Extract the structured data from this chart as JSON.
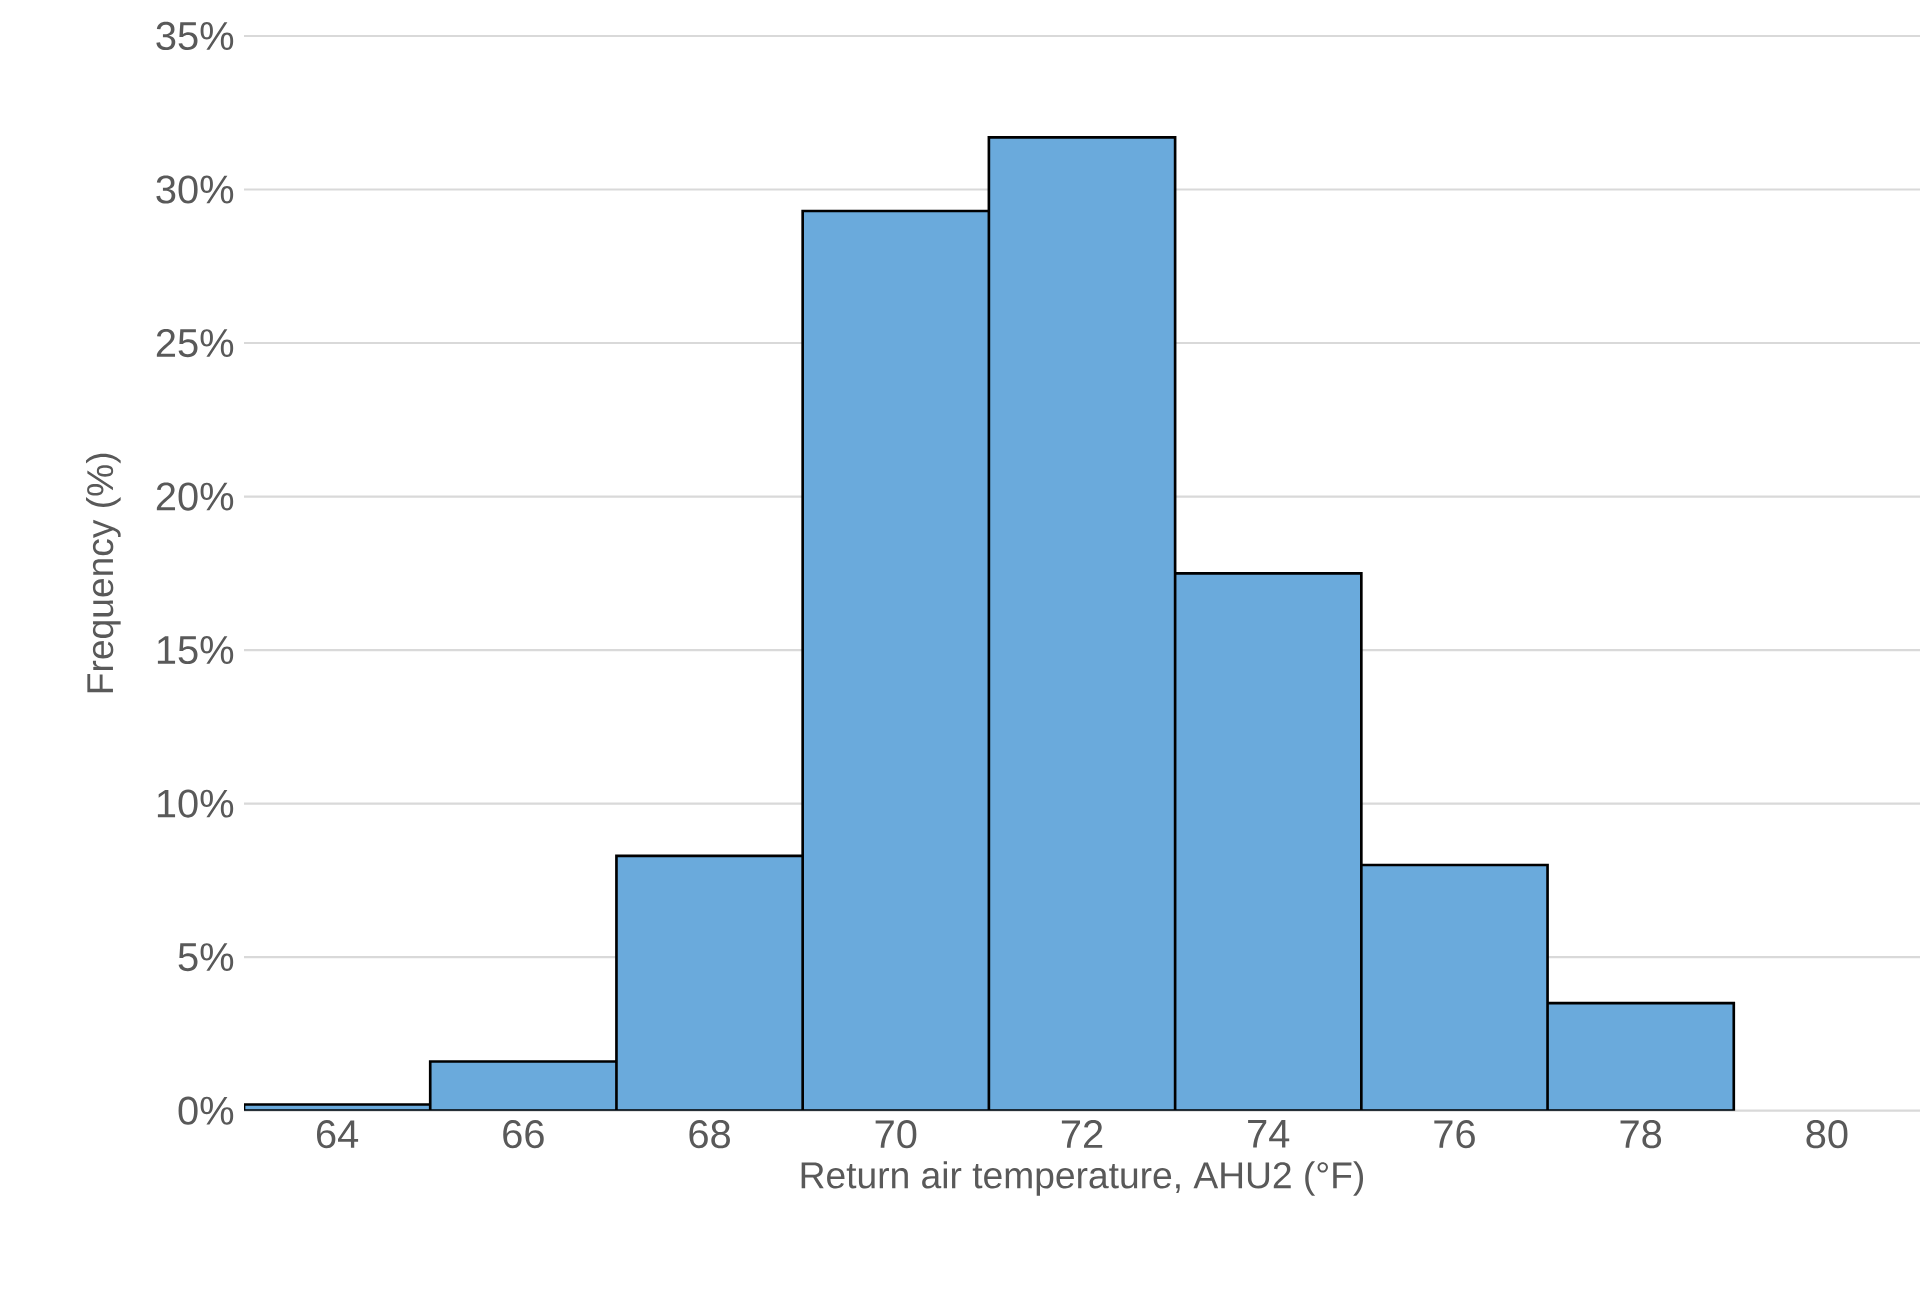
{
  "chart_data": {
    "type": "bar",
    "xlabel": "Return air temperature, AHU2 (°F)",
    "ylabel": "Frequency (%)",
    "categories": [
      "64",
      "66",
      "68",
      "70",
      "72",
      "74",
      "76",
      "78",
      "80"
    ],
    "values": [
      0.2,
      1.6,
      8.3,
      29.3,
      31.7,
      17.5,
      8.0,
      3.5,
      null
    ],
    "color": "#6aaadc",
    "ylim": [
      0,
      35
    ],
    "yticks": [
      {
        "value": 0,
        "label": "0%"
      },
      {
        "value": 5,
        "label": "5%"
      },
      {
        "value": 10,
        "label": "10%"
      },
      {
        "value": 15,
        "label": "15%"
      },
      {
        "value": 20,
        "label": "20%"
      },
      {
        "value": 25,
        "label": "25%"
      },
      {
        "value": 30,
        "label": "30%"
      },
      {
        "value": 35,
        "label": "35%"
      }
    ],
    "grid": "y"
  }
}
